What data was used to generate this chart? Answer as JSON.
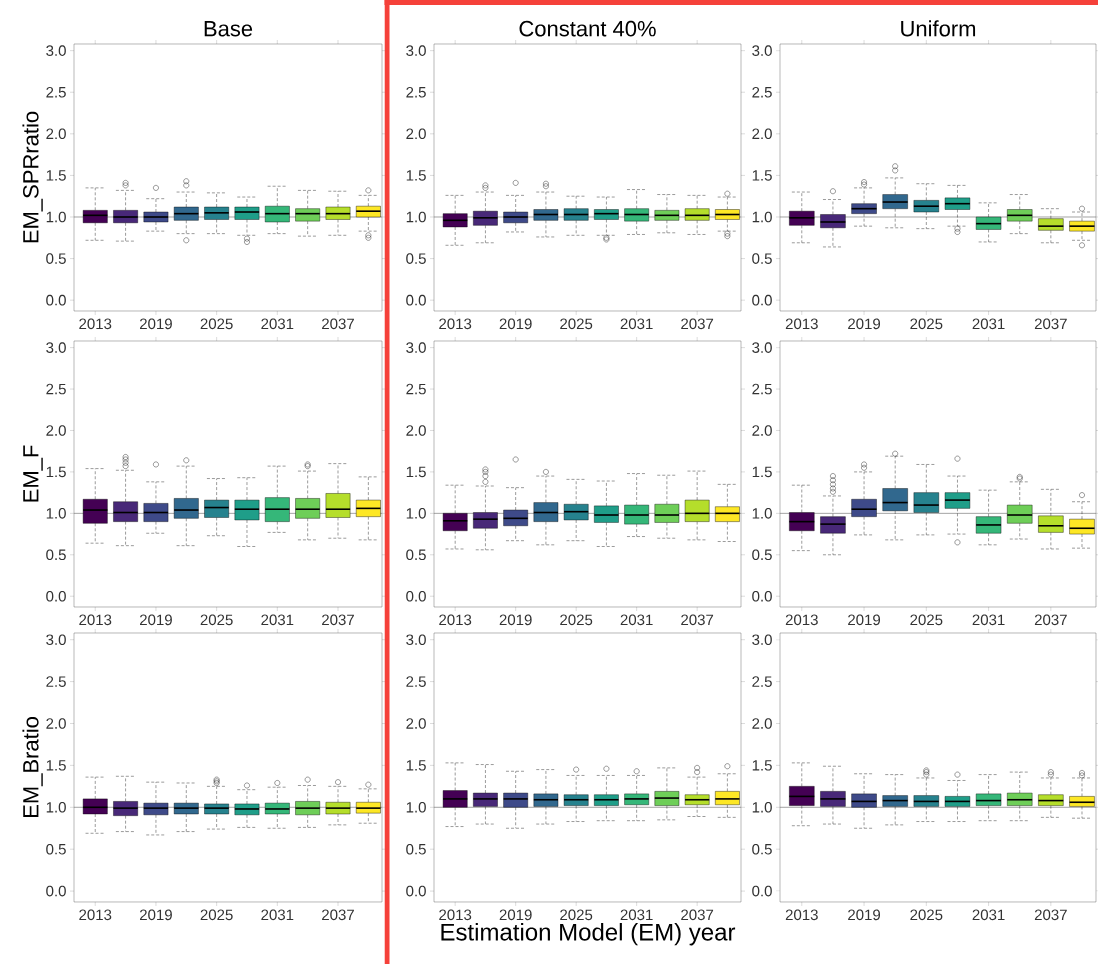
{
  "chart_data": [
    {
      "type": "box",
      "title": "Base",
      "ylabel": "EM_SPRratio",
      "categories": [
        "2013",
        null,
        "2019",
        null,
        "2025",
        null,
        "2031",
        null,
        "2037",
        null
      ],
      "colors": [
        "#440154",
        "#482878",
        "#3e4a89",
        "#31688e",
        "#26828e",
        "#1f9e89",
        "#35b779",
        "#6ece58",
        "#b5de2b",
        "#fde725"
      ],
      "ylim": [
        -0.13,
        3.08
      ],
      "yticks": [
        {
          "value": 0,
          "label": "0.0"
        },
        {
          "value": 0.5,
          "label": "0.5"
        },
        {
          "value": 1,
          "label": "1.0"
        },
        {
          "value": 1.5,
          "label": "1.5"
        },
        {
          "value": 2,
          "label": "2.0"
        },
        {
          "value": 2.5,
          "label": "2.5"
        },
        {
          "value": 3,
          "label": "3.0"
        }
      ],
      "ref_lines": [
        {
          "axis": "y",
          "value": 1
        }
      ],
      "boxes": [
        {
          "low": 0.72,
          "q1": 0.93,
          "median": 1.02,
          "q3": 1.08,
          "high": 1.35
        },
        {
          "low": 0.71,
          "q1": 0.93,
          "median": 1.0,
          "q3": 1.08,
          "high": 1.32,
          "outliers": [
            1.38,
            1.41
          ]
        },
        {
          "low": 0.83,
          "q1": 0.94,
          "median": 1.0,
          "q3": 1.06,
          "high": 1.22,
          "outliers": [
            1.35
          ]
        },
        {
          "low": 0.8,
          "q1": 0.96,
          "median": 1.04,
          "q3": 1.12,
          "high": 1.3,
          "outliers": [
            0.72,
            1.38,
            1.43
          ]
        },
        {
          "low": 0.8,
          "q1": 0.97,
          "median": 1.05,
          "q3": 1.12,
          "high": 1.29
        },
        {
          "low": 0.78,
          "q1": 0.97,
          "median": 1.06,
          "q3": 1.12,
          "high": 1.24,
          "outliers": [
            0.7,
            0.74
          ]
        },
        {
          "low": 0.8,
          "q1": 0.94,
          "median": 1.04,
          "q3": 1.13,
          "high": 1.37
        },
        {
          "low": 0.77,
          "q1": 0.95,
          "median": 1.04,
          "q3": 1.1,
          "high": 1.32
        },
        {
          "low": 0.78,
          "q1": 0.97,
          "median": 1.04,
          "q3": 1.12,
          "high": 1.31
        },
        {
          "low": 0.83,
          "q1": 1.0,
          "median": 1.07,
          "q3": 1.13,
          "high": 1.26,
          "outliers": [
            0.75,
            0.78,
            1.32
          ]
        }
      ]
    },
    {
      "type": "box",
      "title": "Constant 40%",
      "categories": [
        "2013",
        null,
        "2019",
        null,
        "2025",
        null,
        "2031",
        null,
        "2037",
        null
      ],
      "colors": [
        "#440154",
        "#482878",
        "#3e4a89",
        "#31688e",
        "#26828e",
        "#1f9e89",
        "#35b779",
        "#6ece58",
        "#b5de2b",
        "#fde725"
      ],
      "ylim": [
        -0.13,
        3.08
      ],
      "yticks": [
        {
          "value": 0,
          "label": "0.0"
        },
        {
          "value": 0.5,
          "label": "0.5"
        },
        {
          "value": 1,
          "label": "1.0"
        },
        {
          "value": 1.5,
          "label": "1.5"
        },
        {
          "value": 2,
          "label": "2.0"
        },
        {
          "value": 2.5,
          "label": "2.5"
        },
        {
          "value": 3,
          "label": "3.0"
        }
      ],
      "ref_lines": [
        {
          "axis": "y",
          "value": 1
        }
      ],
      "boxes": [
        {
          "low": 0.66,
          "q1": 0.88,
          "median": 0.96,
          "q3": 1.04,
          "high": 1.26
        },
        {
          "low": 0.69,
          "q1": 0.9,
          "median": 0.99,
          "q3": 1.07,
          "high": 1.3,
          "outliers": [
            1.35,
            1.38
          ]
        },
        {
          "low": 0.82,
          "q1": 0.93,
          "median": 1.0,
          "q3": 1.06,
          "high": 1.26,
          "outliers": [
            1.41
          ]
        },
        {
          "low": 0.76,
          "q1": 0.96,
          "median": 1.03,
          "q3": 1.09,
          "high": 1.3,
          "outliers": [
            1.37,
            1.4
          ]
        },
        {
          "low": 0.78,
          "q1": 0.96,
          "median": 1.03,
          "q3": 1.1,
          "high": 1.25
        },
        {
          "low": 0.78,
          "q1": 0.97,
          "median": 1.04,
          "q3": 1.09,
          "high": 1.24,
          "outliers": [
            0.73,
            0.75
          ]
        },
        {
          "low": 0.79,
          "q1": 0.95,
          "median": 1.03,
          "q3": 1.1,
          "high": 1.33
        },
        {
          "low": 0.81,
          "q1": 0.96,
          "median": 1.02,
          "q3": 1.08,
          "high": 1.27
        },
        {
          "low": 0.79,
          "q1": 0.96,
          "median": 1.02,
          "q3": 1.1,
          "high": 1.26
        },
        {
          "low": 0.83,
          "q1": 0.97,
          "median": 1.03,
          "q3": 1.09,
          "high": 1.24,
          "outliers": [
            0.77,
            0.8,
            1.28
          ]
        }
      ]
    },
    {
      "type": "box",
      "title": "Uniform",
      "categories": [
        "2013",
        null,
        "2019",
        null,
        "2025",
        null,
        "2031",
        null,
        "2037",
        null
      ],
      "colors": [
        "#440154",
        "#482878",
        "#3e4a89",
        "#31688e",
        "#26828e",
        "#1f9e89",
        "#35b779",
        "#6ece58",
        "#b5de2b",
        "#fde725"
      ],
      "ylim": [
        -0.13,
        3.08
      ],
      "yticks": [
        {
          "value": 0,
          "label": "0.0"
        },
        {
          "value": 0.5,
          "label": "0.5"
        },
        {
          "value": 1,
          "label": "1.0"
        },
        {
          "value": 1.5,
          "label": "1.5"
        },
        {
          "value": 2,
          "label": "2.0"
        },
        {
          "value": 2.5,
          "label": "2.5"
        },
        {
          "value": 3,
          "label": "3.0"
        }
      ],
      "ref_lines": [
        {
          "axis": "y",
          "value": 1
        }
      ],
      "boxes": [
        {
          "low": 0.69,
          "q1": 0.9,
          "median": 0.99,
          "q3": 1.07,
          "high": 1.3
        },
        {
          "low": 0.64,
          "q1": 0.87,
          "median": 0.94,
          "q3": 1.03,
          "high": 1.21,
          "outliers": [
            1.31
          ]
        },
        {
          "low": 0.89,
          "q1": 1.04,
          "median": 1.1,
          "q3": 1.16,
          "high": 1.35,
          "outliers": [
            1.39,
            1.42
          ]
        },
        {
          "low": 0.87,
          "q1": 1.1,
          "median": 1.18,
          "q3": 1.27,
          "high": 1.47,
          "outliers": [
            1.56,
            1.61
          ]
        },
        {
          "low": 0.86,
          "q1": 1.06,
          "median": 1.13,
          "q3": 1.2,
          "high": 1.4
        },
        {
          "low": 0.89,
          "q1": 1.09,
          "median": 1.16,
          "q3": 1.23,
          "high": 1.38,
          "outliers": [
            0.82,
            0.86
          ]
        },
        {
          "low": 0.7,
          "q1": 0.85,
          "median": 0.92,
          "q3": 1.0,
          "high": 1.17
        },
        {
          "low": 0.8,
          "q1": 0.95,
          "median": 1.02,
          "q3": 1.09,
          "high": 1.27
        },
        {
          "low": 0.69,
          "q1": 0.84,
          "median": 0.89,
          "q3": 0.98,
          "high": 1.1
        },
        {
          "low": 0.72,
          "q1": 0.83,
          "median": 0.89,
          "q3": 0.95,
          "high": 1.06,
          "outliers": [
            0.66,
            1.1
          ]
        }
      ]
    },
    {
      "type": "box",
      "ylabel": "EM_F",
      "categories": [
        "2013",
        null,
        "2019",
        null,
        "2025",
        null,
        "2031",
        null,
        "2037",
        null
      ],
      "colors": [
        "#440154",
        "#482878",
        "#3e4a89",
        "#31688e",
        "#26828e",
        "#1f9e89",
        "#35b779",
        "#6ece58",
        "#b5de2b",
        "#fde725"
      ],
      "ylim": [
        -0.13,
        3.08
      ],
      "yticks": [
        {
          "value": 0,
          "label": "0.0"
        },
        {
          "value": 0.5,
          "label": "0.5"
        },
        {
          "value": 1,
          "label": "1.0"
        },
        {
          "value": 1.5,
          "label": "1.5"
        },
        {
          "value": 2,
          "label": "2.0"
        },
        {
          "value": 2.5,
          "label": "2.5"
        },
        {
          "value": 3,
          "label": "3.0"
        }
      ],
      "ref_lines": [
        {
          "axis": "y",
          "value": 1
        }
      ],
      "boxes": [
        {
          "low": 0.64,
          "q1": 0.88,
          "median": 1.04,
          "q3": 1.17,
          "high": 1.54
        },
        {
          "low": 0.61,
          "q1": 0.9,
          "median": 1.01,
          "q3": 1.14,
          "high": 1.52,
          "outliers": [
            1.57,
            1.61,
            1.65,
            1.68
          ]
        },
        {
          "low": 0.76,
          "q1": 0.9,
          "median": 1.01,
          "q3": 1.12,
          "high": 1.38,
          "outliers": [
            1.59
          ]
        },
        {
          "low": 0.61,
          "q1": 0.94,
          "median": 1.04,
          "q3": 1.18,
          "high": 1.57,
          "outliers": [
            1.64
          ]
        },
        {
          "low": 0.73,
          "q1": 0.95,
          "median": 1.07,
          "q3": 1.16,
          "high": 1.42
        },
        {
          "low": 0.6,
          "q1": 0.92,
          "median": 1.05,
          "q3": 1.16,
          "high": 1.43
        },
        {
          "low": 0.77,
          "q1": 0.9,
          "median": 1.05,
          "q3": 1.19,
          "high": 1.57
        },
        {
          "low": 0.68,
          "q1": 0.94,
          "median": 1.05,
          "q3": 1.18,
          "high": 1.51,
          "outliers": [
            1.57,
            1.59
          ]
        },
        {
          "low": 0.7,
          "q1": 0.95,
          "median": 1.05,
          "q3": 1.24,
          "high": 1.6
        },
        {
          "low": 0.68,
          "q1": 0.96,
          "median": 1.06,
          "q3": 1.16,
          "high": 1.44
        }
      ]
    },
    {
      "type": "box",
      "categories": [
        "2013",
        null,
        "2019",
        null,
        "2025",
        null,
        "2031",
        null,
        "2037",
        null
      ],
      "colors": [
        "#440154",
        "#482878",
        "#3e4a89",
        "#31688e",
        "#26828e",
        "#1f9e89",
        "#35b779",
        "#6ece58",
        "#b5de2b",
        "#fde725"
      ],
      "ylim": [
        -0.13,
        3.08
      ],
      "yticks": [
        {
          "value": 0,
          "label": "0.0"
        },
        {
          "value": 0.5,
          "label": "0.5"
        },
        {
          "value": 1,
          "label": "1.0"
        },
        {
          "value": 1.5,
          "label": "1.5"
        },
        {
          "value": 2,
          "label": "2.0"
        },
        {
          "value": 2.5,
          "label": "2.5"
        },
        {
          "value": 3,
          "label": "3.0"
        }
      ],
      "ref_lines": [
        {
          "axis": "y",
          "value": 1
        }
      ],
      "boxes": [
        {
          "low": 0.57,
          "q1": 0.79,
          "median": 0.91,
          "q3": 1.0,
          "high": 1.34
        },
        {
          "low": 0.56,
          "q1": 0.82,
          "median": 0.93,
          "q3": 1.01,
          "high": 1.33,
          "outliers": [
            1.38,
            1.45,
            1.5,
            1.53
          ]
        },
        {
          "low": 0.67,
          "q1": 0.85,
          "median": 0.94,
          "q3": 1.04,
          "high": 1.31,
          "outliers": [
            1.65
          ]
        },
        {
          "low": 0.62,
          "q1": 0.9,
          "median": 1.01,
          "q3": 1.13,
          "high": 1.45,
          "outliers": [
            1.5
          ]
        },
        {
          "low": 0.67,
          "q1": 0.92,
          "median": 1.02,
          "q3": 1.11,
          "high": 1.41
        },
        {
          "low": 0.6,
          "q1": 0.89,
          "median": 0.98,
          "q3": 1.09,
          "high": 1.39
        },
        {
          "low": 0.72,
          "q1": 0.87,
          "median": 0.98,
          "q3": 1.1,
          "high": 1.48
        },
        {
          "low": 0.7,
          "q1": 0.89,
          "median": 0.98,
          "q3": 1.11,
          "high": 1.46
        },
        {
          "low": 0.68,
          "q1": 0.9,
          "median": 1.0,
          "q3": 1.16,
          "high": 1.51
        },
        {
          "low": 0.66,
          "q1": 0.9,
          "median": 1.0,
          "q3": 1.08,
          "high": 1.35
        }
      ]
    },
    {
      "type": "box",
      "categories": [
        "2013",
        null,
        "2019",
        null,
        "2025",
        null,
        "2031",
        null,
        "2037",
        null
      ],
      "colors": [
        "#440154",
        "#482878",
        "#3e4a89",
        "#31688e",
        "#26828e",
        "#1f9e89",
        "#35b779",
        "#6ece58",
        "#b5de2b",
        "#fde725"
      ],
      "ylim": [
        -0.13,
        3.08
      ],
      "yticks": [
        {
          "value": 0,
          "label": "0.0"
        },
        {
          "value": 0.5,
          "label": "0.5"
        },
        {
          "value": 1,
          "label": "1.0"
        },
        {
          "value": 1.5,
          "label": "1.5"
        },
        {
          "value": 2,
          "label": "2.0"
        },
        {
          "value": 2.5,
          "label": "2.5"
        },
        {
          "value": 3,
          "label": "3.0"
        }
      ],
      "ref_lines": [
        {
          "axis": "y",
          "value": 1
        }
      ],
      "boxes": [
        {
          "low": 0.55,
          "q1": 0.79,
          "median": 0.9,
          "q3": 1.01,
          "high": 1.34
        },
        {
          "low": 0.5,
          "q1": 0.76,
          "median": 0.87,
          "q3": 0.96,
          "high": 1.21,
          "outliers": [
            1.26,
            1.3,
            1.35,
            1.4,
            1.45
          ]
        },
        {
          "low": 0.74,
          "q1": 0.96,
          "median": 1.05,
          "q3": 1.17,
          "high": 1.5,
          "outliers": [
            1.55,
            1.59
          ]
        },
        {
          "low": 0.68,
          "q1": 1.03,
          "median": 1.13,
          "q3": 1.3,
          "high": 1.69,
          "outliers": [
            1.72
          ]
        },
        {
          "low": 0.74,
          "q1": 1.01,
          "median": 1.1,
          "q3": 1.25,
          "high": 1.59
        },
        {
          "low": 0.75,
          "q1": 1.06,
          "median": 1.16,
          "q3": 1.25,
          "high": 1.45,
          "outliers": [
            0.65,
            1.66
          ]
        },
        {
          "low": 0.62,
          "q1": 0.76,
          "median": 0.86,
          "q3": 0.96,
          "high": 1.28
        },
        {
          "low": 0.69,
          "q1": 0.88,
          "median": 0.98,
          "q3": 1.1,
          "high": 1.38,
          "outliers": [
            1.42,
            1.44
          ]
        },
        {
          "low": 0.57,
          "q1": 0.77,
          "median": 0.85,
          "q3": 0.97,
          "high": 1.29
        },
        {
          "low": 0.58,
          "q1": 0.75,
          "median": 0.82,
          "q3": 0.93,
          "high": 1.14,
          "outliers": [
            1.22
          ]
        }
      ]
    },
    {
      "type": "box",
      "ylabel": "EM_Bratio",
      "categories": [
        "2013",
        null,
        "2019",
        null,
        "2025",
        null,
        "2031",
        null,
        "2037",
        null
      ],
      "colors": [
        "#440154",
        "#482878",
        "#3e4a89",
        "#31688e",
        "#26828e",
        "#1f9e89",
        "#35b779",
        "#6ece58",
        "#b5de2b",
        "#fde725"
      ],
      "ylim": [
        -0.13,
        3.08
      ],
      "yticks": [
        {
          "value": 0,
          "label": "0.0"
        },
        {
          "value": 0.5,
          "label": "0.5"
        },
        {
          "value": 1,
          "label": "1.0"
        },
        {
          "value": 1.5,
          "label": "1.5"
        },
        {
          "value": 2,
          "label": "2.0"
        },
        {
          "value": 2.5,
          "label": "2.5"
        },
        {
          "value": 3,
          "label": "3.0"
        }
      ],
      "ref_lines": [
        {
          "axis": "y",
          "value": 1
        }
      ],
      "boxes": [
        {
          "low": 0.69,
          "q1": 0.92,
          "median": 1.0,
          "q3": 1.1,
          "high": 1.36
        },
        {
          "low": 0.71,
          "q1": 0.9,
          "median": 0.99,
          "q3": 1.07,
          "high": 1.37
        },
        {
          "low": 0.67,
          "q1": 0.91,
          "median": 0.99,
          "q3": 1.05,
          "high": 1.3
        },
        {
          "low": 0.71,
          "q1": 0.92,
          "median": 0.99,
          "q3": 1.05,
          "high": 1.29
        },
        {
          "low": 0.74,
          "q1": 0.92,
          "median": 0.99,
          "q3": 1.04,
          "high": 1.25,
          "outliers": [
            1.29,
            1.31,
            1.33
          ]
        },
        {
          "low": 0.76,
          "q1": 0.91,
          "median": 0.98,
          "q3": 1.04,
          "high": 1.21,
          "outliers": [
            1.26
          ]
        },
        {
          "low": 0.75,
          "q1": 0.92,
          "median": 0.98,
          "q3": 1.05,
          "high": 1.24,
          "outliers": [
            1.29
          ]
        },
        {
          "low": 0.76,
          "q1": 0.91,
          "median": 0.99,
          "q3": 1.07,
          "high": 1.26,
          "outliers": [
            1.33
          ]
        },
        {
          "low": 0.79,
          "q1": 0.92,
          "median": 0.99,
          "q3": 1.06,
          "high": 1.25,
          "outliers": [
            1.3
          ]
        },
        {
          "low": 0.81,
          "q1": 0.93,
          "median": 0.99,
          "q3": 1.06,
          "high": 1.22,
          "outliers": [
            1.27
          ]
        }
      ]
    },
    {
      "type": "box",
      "xlabel": "Estimation Model (EM) year",
      "categories": [
        "2013",
        null,
        "2019",
        null,
        "2025",
        null,
        "2031",
        null,
        "2037",
        null
      ],
      "colors": [
        "#440154",
        "#482878",
        "#3e4a89",
        "#31688e",
        "#26828e",
        "#1f9e89",
        "#35b779",
        "#6ece58",
        "#b5de2b",
        "#fde725"
      ],
      "ylim": [
        -0.13,
        3.08
      ],
      "yticks": [
        {
          "value": 0,
          "label": "0.0"
        },
        {
          "value": 0.5,
          "label": "0.5"
        },
        {
          "value": 1,
          "label": "1.0"
        },
        {
          "value": 1.5,
          "label": "1.5"
        },
        {
          "value": 2,
          "label": "2.0"
        },
        {
          "value": 2.5,
          "label": "2.5"
        },
        {
          "value": 3,
          "label": "3.0"
        }
      ],
      "ref_lines": [
        {
          "axis": "y",
          "value": 1
        }
      ],
      "boxes": [
        {
          "low": 0.77,
          "q1": 1.0,
          "median": 1.1,
          "q3": 1.2,
          "high": 1.53
        },
        {
          "low": 0.8,
          "q1": 1.01,
          "median": 1.1,
          "q3": 1.17,
          "high": 1.51
        },
        {
          "low": 0.75,
          "q1": 1.0,
          "median": 1.1,
          "q3": 1.17,
          "high": 1.43
        },
        {
          "low": 0.8,
          "q1": 1.01,
          "median": 1.09,
          "q3": 1.16,
          "high": 1.45
        },
        {
          "low": 0.83,
          "q1": 1.02,
          "median": 1.09,
          "q3": 1.15,
          "high": 1.38,
          "outliers": [
            1.45
          ]
        },
        {
          "low": 0.84,
          "q1": 1.02,
          "median": 1.09,
          "q3": 1.15,
          "high": 1.38,
          "outliers": [
            1.46
          ]
        },
        {
          "low": 0.84,
          "q1": 1.03,
          "median": 1.1,
          "q3": 1.16,
          "high": 1.38,
          "outliers": [
            1.43
          ]
        },
        {
          "low": 0.85,
          "q1": 1.02,
          "median": 1.11,
          "q3": 1.19,
          "high": 1.47
        },
        {
          "low": 0.89,
          "q1": 1.03,
          "median": 1.09,
          "q3": 1.15,
          "high": 1.36,
          "outliers": [
            1.42,
            1.47
          ]
        },
        {
          "low": 0.88,
          "q1": 1.03,
          "median": 1.1,
          "q3": 1.19,
          "high": 1.4,
          "outliers": [
            1.49
          ]
        }
      ]
    },
    {
      "type": "box",
      "categories": [
        "2013",
        null,
        "2019",
        null,
        "2025",
        null,
        "2031",
        null,
        "2037",
        null
      ],
      "colors": [
        "#440154",
        "#482878",
        "#3e4a89",
        "#31688e",
        "#26828e",
        "#1f9e89",
        "#35b779",
        "#6ece58",
        "#b5de2b",
        "#fde725"
      ],
      "ylim": [
        -0.13,
        3.08
      ],
      "yticks": [
        {
          "value": 0,
          "label": "0.0"
        },
        {
          "value": 0.5,
          "label": "0.5"
        },
        {
          "value": 1,
          "label": "1.0"
        },
        {
          "value": 1.5,
          "label": "1.5"
        },
        {
          "value": 2,
          "label": "2.0"
        },
        {
          "value": 2.5,
          "label": "2.5"
        },
        {
          "value": 3,
          "label": "3.0"
        }
      ],
      "ref_lines": [
        {
          "axis": "y",
          "value": 1
        }
      ],
      "boxes": [
        {
          "low": 0.78,
          "q1": 1.02,
          "median": 1.13,
          "q3": 1.25,
          "high": 1.53
        },
        {
          "low": 0.8,
          "q1": 1.01,
          "median": 1.1,
          "q3": 1.19,
          "high": 1.49
        },
        {
          "low": 0.75,
          "q1": 1.0,
          "median": 1.07,
          "q3": 1.16,
          "high": 1.4
        },
        {
          "low": 0.79,
          "q1": 1.01,
          "median": 1.08,
          "q3": 1.14,
          "high": 1.39
        },
        {
          "low": 0.83,
          "q1": 1.01,
          "median": 1.07,
          "q3": 1.14,
          "high": 1.35,
          "outliers": [
            1.39,
            1.42,
            1.44
          ]
        },
        {
          "low": 0.83,
          "q1": 1.01,
          "median": 1.07,
          "q3": 1.13,
          "high": 1.32,
          "outliers": [
            1.39
          ]
        },
        {
          "low": 0.84,
          "q1": 1.02,
          "median": 1.08,
          "q3": 1.16,
          "high": 1.39
        },
        {
          "low": 0.84,
          "q1": 1.02,
          "median": 1.09,
          "q3": 1.17,
          "high": 1.42
        },
        {
          "low": 0.88,
          "q1": 1.02,
          "median": 1.08,
          "q3": 1.15,
          "high": 1.35,
          "outliers": [
            1.39,
            1.42
          ]
        },
        {
          "low": 0.87,
          "q1": 1.01,
          "median": 1.06,
          "q3": 1.13,
          "high": 1.35,
          "outliers": [
            1.38,
            1.41
          ]
        }
      ]
    }
  ]
}
